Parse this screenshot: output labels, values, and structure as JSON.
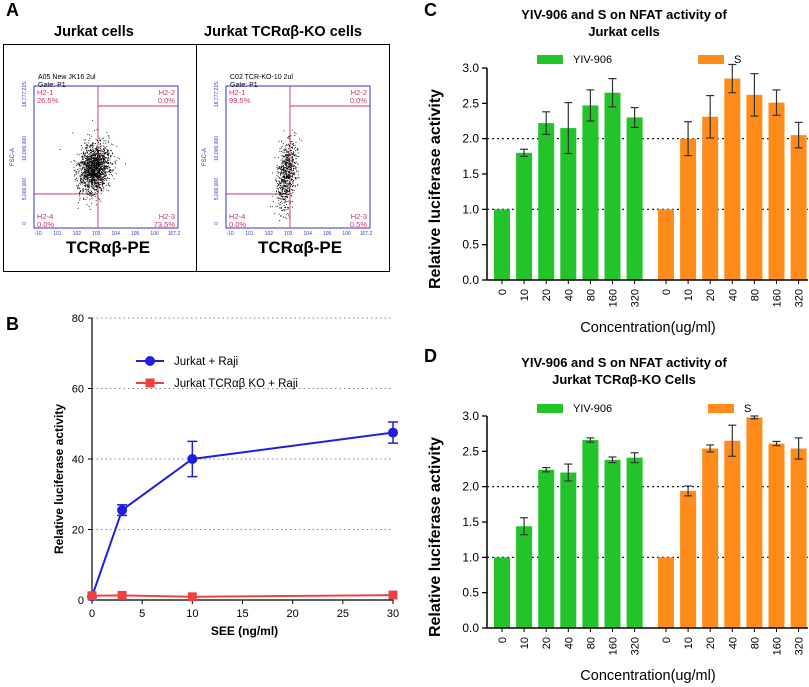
{
  "panel_letters": {
    "a": "A",
    "b": "B",
    "c": "C",
    "d": "D"
  },
  "panel_a": {
    "plots": [
      {
        "title": "Jurkat cells",
        "sample": "A05 New JK16 2ul",
        "gate": "Gate: P1",
        "ylabel": "FSC-A",
        "yticks": [
          "16,777,215",
          "10,000,000",
          "5,000,000",
          "0"
        ],
        "xticks": [
          "-10",
          "10^1",
          "10^2",
          "10^3",
          "10^4",
          "10^5",
          "10^6",
          "10^7.2"
        ],
        "quadrants": [
          {
            "name": "H2-1",
            "value": "26.5%"
          },
          {
            "name": "H2-2",
            "value": "0.0%"
          },
          {
            "name": "H2-3",
            "value": "73.5%"
          },
          {
            "name": "H2-4",
            "value": "0.0%"
          }
        ],
        "xlabel": "TCRαβ-PE"
      },
      {
        "title": "Jurkat TCRαβ-KO cells",
        "sample": "C02 TCR-KO-10 2ul",
        "gate": "Gate: P1",
        "ylabel": "FSC-A",
        "yticks": [
          "16,777,215",
          "10,000,000",
          "5,000,000",
          "0"
        ],
        "xticks": [
          "-10",
          "10^1",
          "10^2",
          "10^3",
          "10^4",
          "10^5",
          "10^6",
          "10^7.2"
        ],
        "quadrants": [
          {
            "name": "H2-1",
            "value": "99.5%"
          },
          {
            "name": "H2-2",
            "value": "0.0%"
          },
          {
            "name": "H2-3",
            "value": "0.5%"
          },
          {
            "name": "H2-4",
            "value": "0.0%"
          }
        ],
        "xlabel": "TCRαβ-PE"
      }
    ]
  },
  "chart_data": [
    {
      "panel": "B",
      "type": "line",
      "title": "",
      "xlabel": "SEE (ng/ml)",
      "ylabel": "Relative luciferase activity",
      "xlim": [
        0,
        30
      ],
      "ylim": [
        0,
        80
      ],
      "xticks": [
        0,
        5,
        10,
        15,
        20,
        25,
        30
      ],
      "yticks": [
        0,
        20,
        40,
        60,
        80
      ],
      "grid": "dotted horizontal",
      "legend_position": "top-center",
      "series": [
        {
          "name": "Jurkat + Raji",
          "color": "#1f1fe0",
          "marker": "circle",
          "x": [
            0,
            3,
            10,
            30
          ],
          "y": [
            1,
            25.5,
            40,
            47.5
          ],
          "err": [
            0.5,
            1.5,
            5,
            3
          ]
        },
        {
          "name": "Jurkat TCRαβ KO + Raji",
          "color": "#f04040",
          "marker": "square",
          "x": [
            0,
            3,
            10,
            30
          ],
          "y": [
            1.2,
            1.3,
            0.9,
            1.4
          ],
          "err": [
            0.3,
            0.3,
            0.3,
            0.3
          ]
        }
      ]
    },
    {
      "panel": "C",
      "type": "bar",
      "title": "YIV-906 and S on NFAT activity of Jurkat cells",
      "title_lines": [
        "YIV-906 and S on NFAT activity of",
        "Jurkat cells"
      ],
      "xlabel": "Concentration(ug/ml)",
      "ylabel": "Relative luciferase activity",
      "ylim": [
        0,
        3.0
      ],
      "yticks": [
        "0.0",
        "0.5",
        "1.0",
        "1.5",
        "2.0",
        "2.5",
        "3.0"
      ],
      "reference_lines": [
        1.0,
        2.0
      ],
      "categories": [
        "0",
        "10",
        "20",
        "40",
        "80",
        "160",
        "320"
      ],
      "series": [
        {
          "name": "YIV-906",
          "color": "#22c42a",
          "values": [
            1.0,
            1.8,
            2.22,
            2.15,
            2.47,
            2.65,
            2.3
          ],
          "err": [
            0,
            0.05,
            0.16,
            0.36,
            0.22,
            0.2,
            0.14
          ]
        },
        {
          "name": "S",
          "color": "#ff8c1a",
          "values": [
            1.0,
            2.0,
            2.31,
            2.85,
            2.62,
            2.51,
            2.05
          ],
          "err": [
            0,
            0.24,
            0.3,
            0.2,
            0.3,
            0.18,
            0.18
          ]
        }
      ]
    },
    {
      "panel": "D",
      "type": "bar",
      "title": "YIV-906 and S on NFAT activity of Jurkat TCRαβ-KO Cells",
      "title_lines": [
        "YIV-906 and S on NFAT activity of",
        "Jurkat TCRαβ-KO Cells"
      ],
      "xlabel": "Concentration(ug/ml)",
      "ylabel": "Relative luciferase activity",
      "ylim": [
        0,
        3.0
      ],
      "yticks": [
        "0.0",
        "0.5",
        "1.0",
        "1.5",
        "2.0",
        "2.5",
        "3.0"
      ],
      "reference_lines": [
        1.0,
        2.0
      ],
      "categories": [
        "0",
        "10",
        "20",
        "40",
        "80",
        "160",
        "320"
      ],
      "series": [
        {
          "name": "YIV-906",
          "color": "#22c42a",
          "values": [
            1.0,
            1.44,
            2.24,
            2.2,
            2.66,
            2.38,
            2.41
          ],
          "err": [
            0,
            0.12,
            0.03,
            0.12,
            0.03,
            0.04,
            0.07
          ]
        },
        {
          "name": "S",
          "color": "#ff8c1a",
          "values": [
            1.0,
            1.94,
            2.54,
            2.65,
            2.98,
            2.61,
            2.54
          ],
          "err": [
            0,
            0.07,
            0.05,
            0.22,
            0.02,
            0.03,
            0.15
          ]
        }
      ]
    }
  ]
}
